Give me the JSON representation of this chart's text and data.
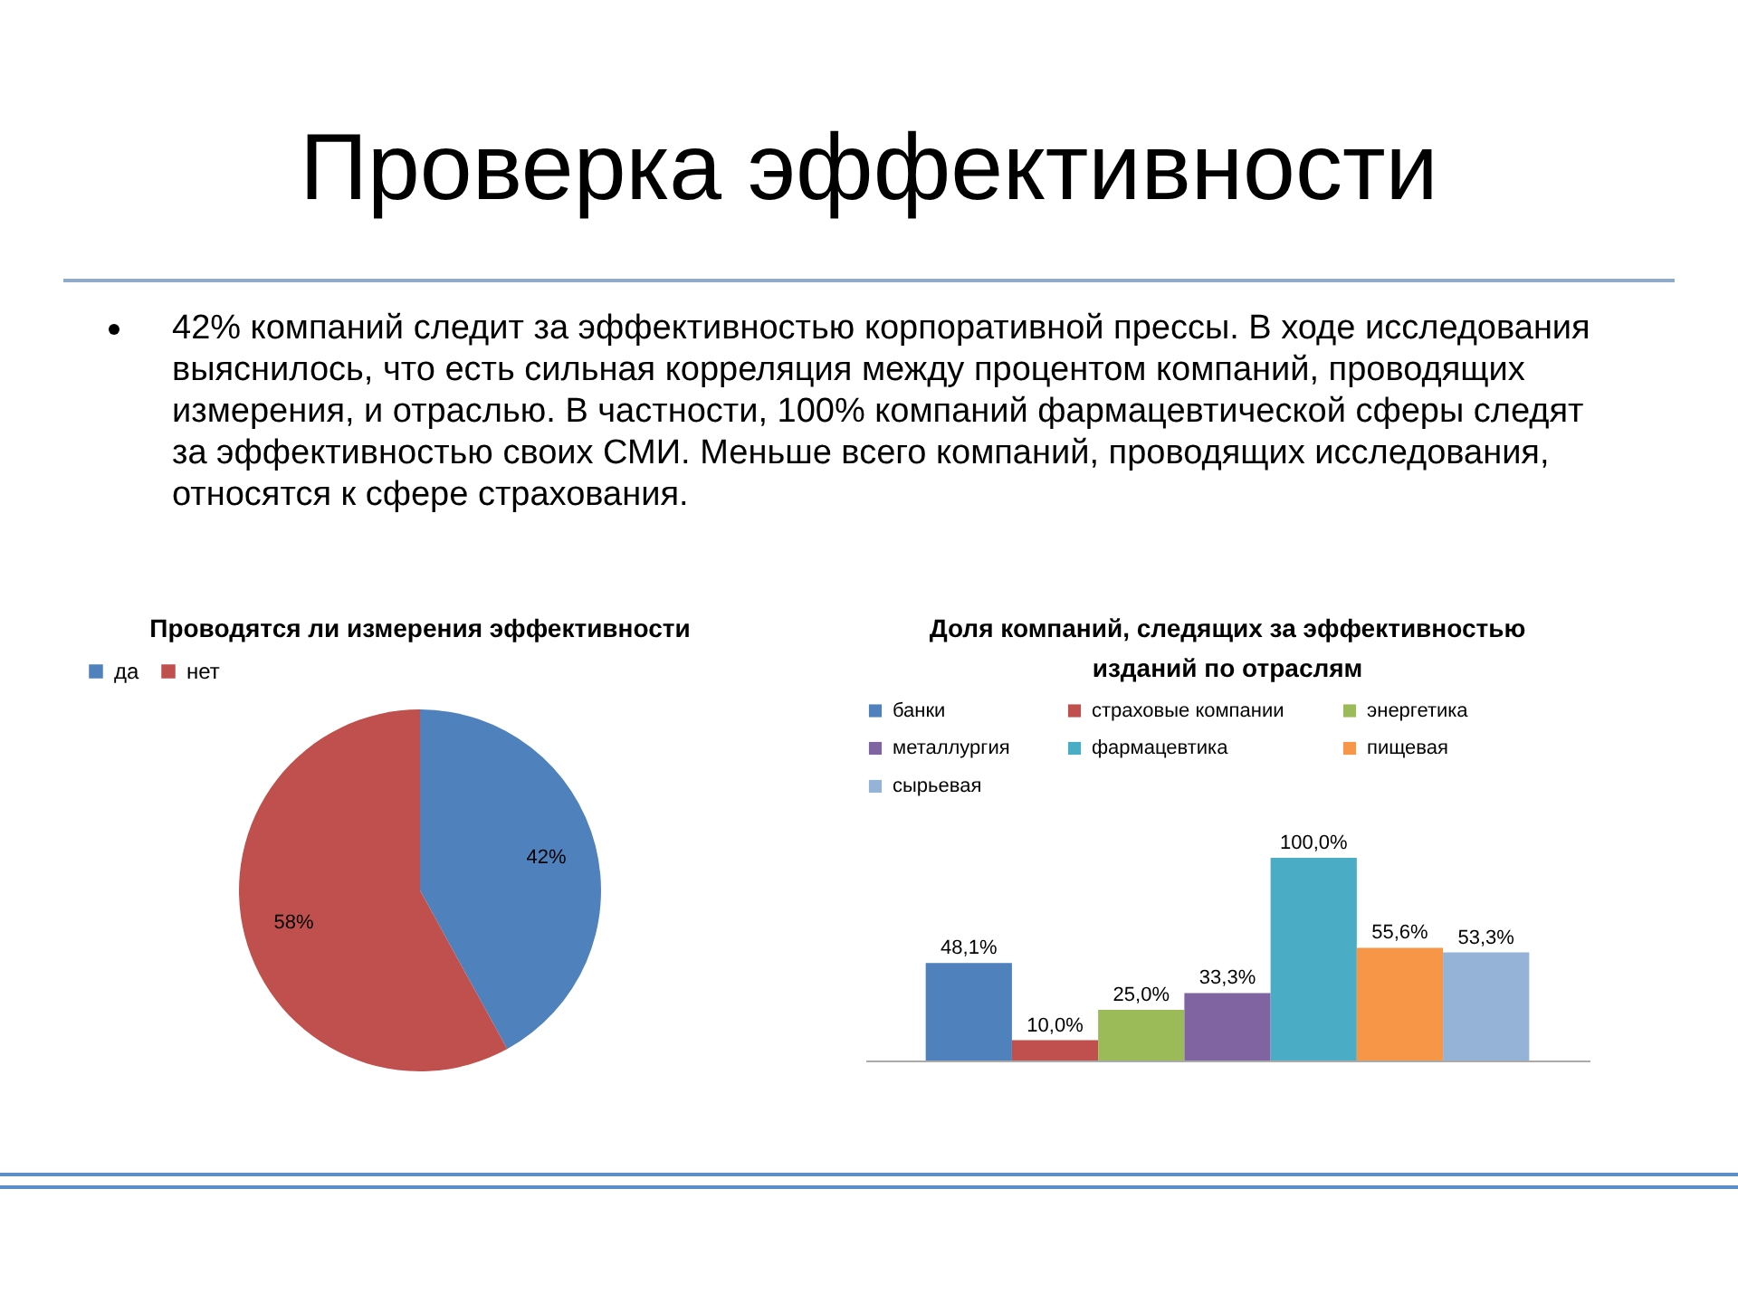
{
  "chart_data": [
    {
      "type": "other",
      "title": "Проверка эффективности",
      "annotations": [
        "42% компаний следит за эффективностью корпоративной прессы. В ходе исследования выяснилось, что есть сильная корреляция между процентом компаний, проводящих измерения, и отраслью. В частности, 100% компаний фармацевтической сферы следят за эффективностью своих СМИ. Меньше всего компаний, проводящих исследования, относятся к сфере страхования."
      ]
    },
    {
      "type": "pie",
      "title": "Проводятся ли измерения эффективности",
      "categories": [
        "да",
        "нет"
      ],
      "values": [
        42,
        58
      ],
      "colors": [
        "#4f81bd",
        "#c0504d"
      ],
      "value_labels": [
        "42%",
        "58%"
      ],
      "legend": "top"
    },
    {
      "type": "bar",
      "title": "Доля компаний, следящих за эффективностью изданий по отраслям",
      "categories": [
        null
      ],
      "series": [
        {
          "name": "банки",
          "color": "#4f81bd",
          "values": [
            48.1
          ],
          "value_labels": [
            "48,1%"
          ]
        },
        {
          "name": "страховые компании",
          "color": "#c0504d",
          "values": [
            10.0
          ],
          "value_labels": [
            "10,0%"
          ]
        },
        {
          "name": "энергетика",
          "color": "#9bbb59",
          "values": [
            25.0
          ],
          "value_labels": [
            "25,0%"
          ]
        },
        {
          "name": "металлургия",
          "color": "#8064a2",
          "values": [
            33.3
          ],
          "value_labels": [
            "33,3%"
          ]
        },
        {
          "name": "фармацевтика",
          "color": "#4bacc6",
          "values": [
            100.0
          ],
          "value_labels": [
            "100,0%"
          ]
        },
        {
          "name": "пищевая",
          "color": "#f79646",
          "values": [
            55.6
          ],
          "value_labels": [
            "55,6%"
          ]
        },
        {
          "name": "сырьевая",
          "color": "#95b3d7",
          "values": [
            53.3
          ],
          "value_labels": [
            "53,3%"
          ]
        }
      ],
      "legend": "top"
    }
  ]
}
